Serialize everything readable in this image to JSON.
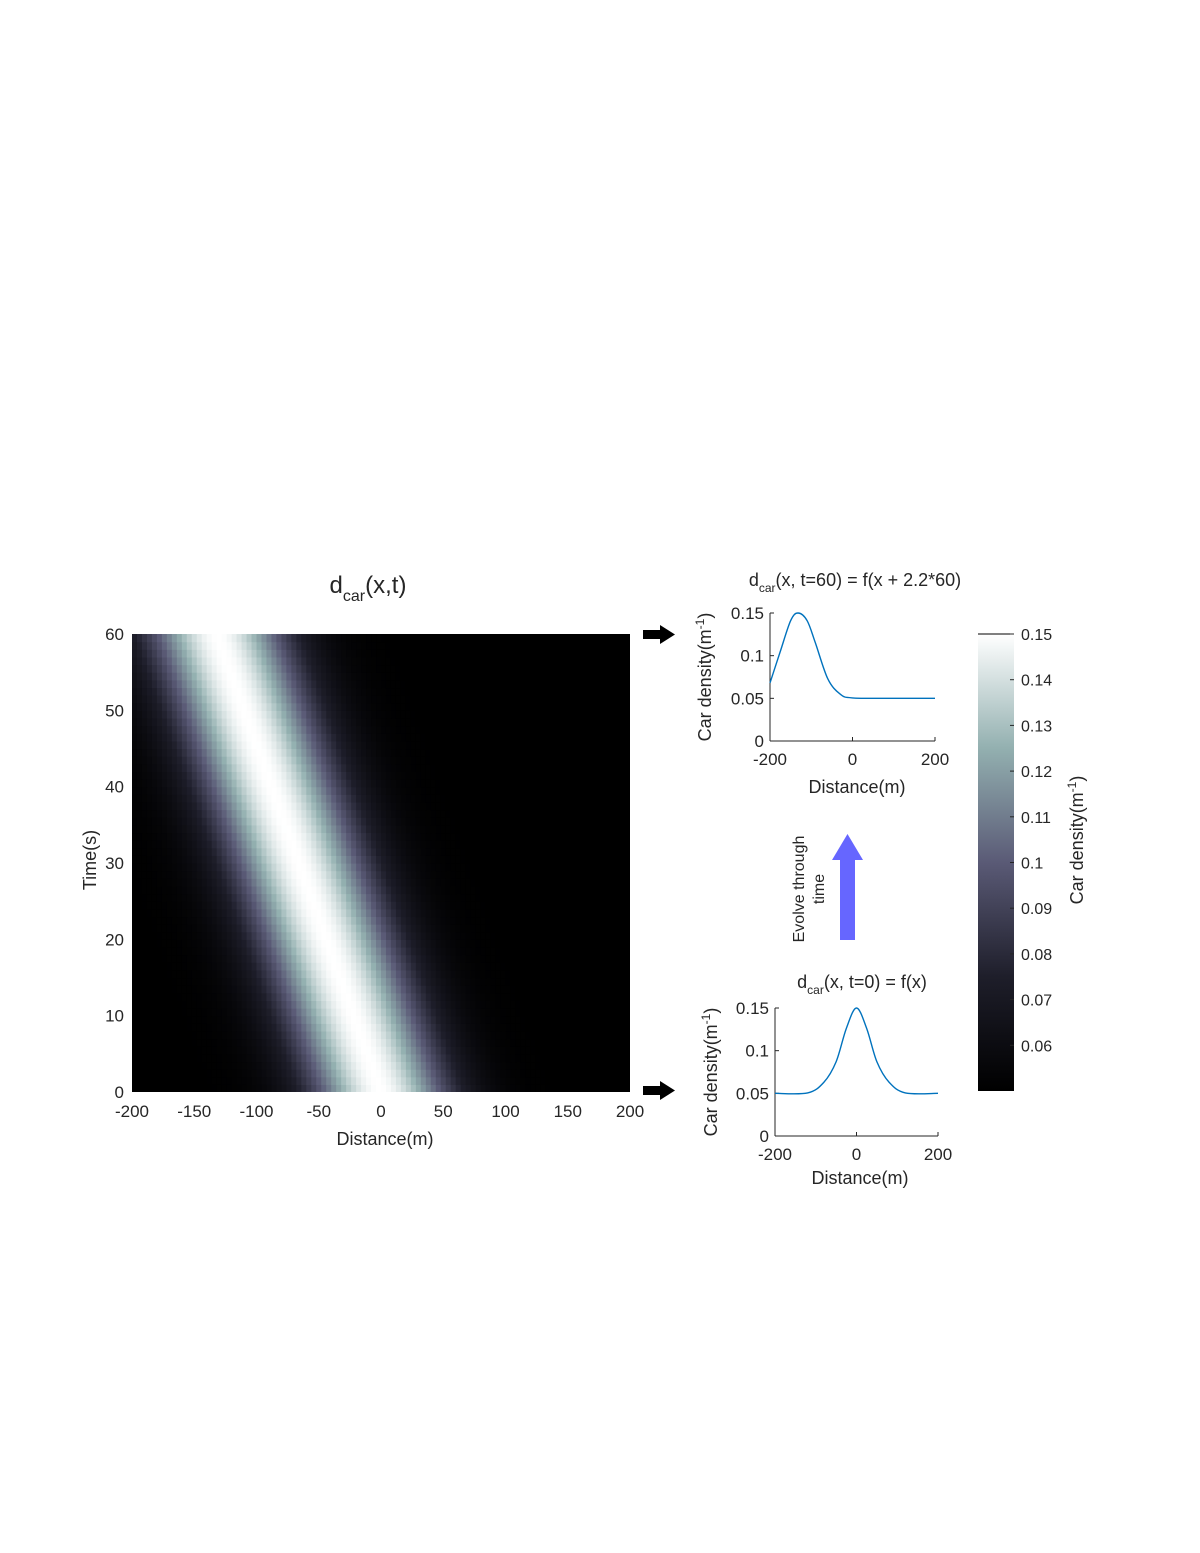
{
  "chart_data": [
    {
      "type": "heatmap",
      "title": {
        "base": "d",
        "sub": "car",
        "rest": "(x,t)"
      },
      "xlabel": "Distance(m)",
      "ylabel": "Time(s)",
      "xlim": [
        -200,
        200
      ],
      "ylim": [
        0,
        60
      ],
      "xticks": [
        "-200",
        "-150",
        "-100",
        "-50",
        "0",
        "50",
        "100",
        "150",
        "200"
      ],
      "yticks": [
        "0",
        "10",
        "20",
        "30",
        "40",
        "50",
        "60"
      ],
      "model": {
        "baseline": 0.05,
        "amplitude": 0.1,
        "center_m": 0,
        "width_sigma_m": 40,
        "speed_m_per_s": 2.2,
        "direction": "left"
      },
      "colormap": "bone"
    },
    {
      "type": "line",
      "title": {
        "base": "d",
        "sub": "car",
        "rest": "(x, t=60) = f(x + 2.2*60)"
      },
      "xlabel": "Distance(m)",
      "ylabel": "Car density(m-1)",
      "ylabel_parts": {
        "base": "Car density(m",
        "sup": "-1",
        "end": ")"
      },
      "xlim": [
        -200,
        200
      ],
      "ylim": [
        0,
        0.15
      ],
      "xticks": [
        "-200",
        "0",
        "200"
      ],
      "yticks": [
        "0",
        "0.05",
        "0.1",
        "0.15"
      ],
      "series": [
        {
          "x": [
            -200,
            -175,
            -150,
            -132,
            -110,
            -90,
            -60,
            -30,
            0,
            100,
            200
          ],
          "y": [
            0.068,
            0.105,
            0.141,
            0.15,
            0.141,
            0.115,
            0.073,
            0.055,
            0.0505,
            0.05,
            0.05
          ],
          "color": "#0072bd"
        }
      ]
    },
    {
      "type": "line",
      "title": {
        "base": "d",
        "sub": "car",
        "rest": "(x, t=0) = f(x)"
      },
      "xlabel": "Distance(m)",
      "ylabel": "Car density(m-1)",
      "ylabel_parts": {
        "base": "Car density(m",
        "sup": "-1",
        "end": ")"
      },
      "xlim": [
        -200,
        200
      ],
      "ylim": [
        0,
        0.15
      ],
      "xticks": [
        "-200",
        "0",
        "200"
      ],
      "yticks": [
        "0",
        "0.05",
        "0.1",
        "0.15"
      ],
      "series": [
        {
          "x": [
            -200,
            -120,
            -80,
            -50,
            -25,
            0,
            25,
            50,
            80,
            120,
            200
          ],
          "y": [
            0.05,
            0.0505,
            0.063,
            0.087,
            0.126,
            0.15,
            0.126,
            0.087,
            0.063,
            0.0505,
            0.05
          ],
          "color": "#0072bd"
        }
      ]
    },
    {
      "type": "colorbar",
      "label": "Car density(m-1)",
      "label_parts": {
        "base": "Car density(m",
        "sup": "-1",
        "end": ")"
      },
      "range": [
        0.05,
        0.15
      ],
      "ticks": [
        "0.06",
        "0.07",
        "0.08",
        "0.09",
        "0.1",
        "0.11",
        "0.12",
        "0.13",
        "0.14",
        "0.15"
      ]
    }
  ],
  "annotation": {
    "arrow_label_lines": [
      "Evolve through",
      "time"
    ],
    "arrow_color": "#6666ff"
  }
}
